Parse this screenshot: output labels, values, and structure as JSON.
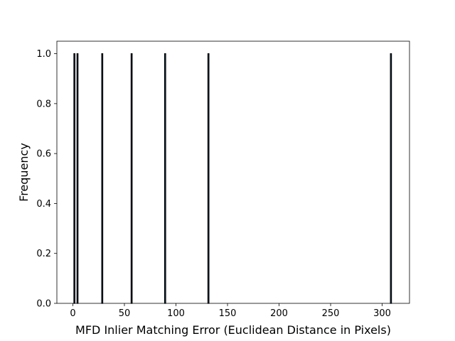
{
  "chart_data": {
    "type": "bar",
    "title": "",
    "xlabel": "MFD Inlier Matching Error (Euclidean Distance in Pixels)",
    "ylabel": "Frequency",
    "xlim": [
      -15.5,
      326.5
    ],
    "ylim": [
      0,
      1.05
    ],
    "x_ticks": [
      0,
      50,
      100,
      150,
      200,
      250,
      300
    ],
    "y_ticks": [
      0.0,
      0.2,
      0.4,
      0.6,
      0.8,
      1.0
    ],
    "x_tick_labels": [
      "0",
      "50",
      "100",
      "150",
      "200",
      "250",
      "300"
    ],
    "y_tick_labels": [
      "0.0",
      "0.2",
      "0.4",
      "0.6",
      "0.8",
      "1.0"
    ],
    "bin_width": 1.0,
    "bars": [
      {
        "x": 1.5,
        "value": 1.0
      },
      {
        "x": 4.5,
        "value": 1.0
      },
      {
        "x": 28.5,
        "value": 1.0
      },
      {
        "x": 57.0,
        "value": 1.0
      },
      {
        "x": 89.5,
        "value": 1.0
      },
      {
        "x": 131.5,
        "value": 1.0
      },
      {
        "x": 308.5,
        "value": 1.0
      }
    ],
    "bar_color": "#1f77b4",
    "edge_color": "#000000",
    "grid": false,
    "legend": null
  }
}
